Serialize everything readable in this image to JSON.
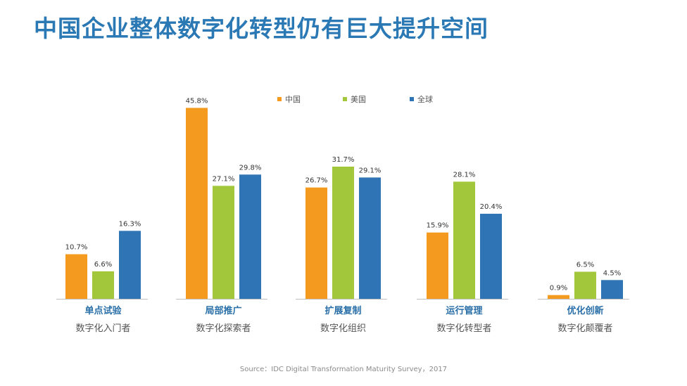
{
  "title": "中国企业整体数字化转型仍有巨大提升空间",
  "source": "Source：IDC Digital Transformation Maturity Survey，2017",
  "chart_data": {
    "type": "bar",
    "categories": [
      "单点试验",
      "局部推广",
      "扩展复制",
      "运行管理",
      "优化创新"
    ],
    "subcategories": [
      "数字化入门者",
      "数字化探索者",
      "数字化组织",
      "数字化转型者",
      "数字化颠覆者"
    ],
    "series": [
      {
        "name": "中国",
        "color": "#f39a1f",
        "values": [
          10.7,
          45.8,
          26.7,
          15.9,
          0.9
        ]
      },
      {
        "name": "美国",
        "color": "#a3c73a",
        "values": [
          6.6,
          27.1,
          31.7,
          28.1,
          6.5
        ]
      },
      {
        "name": "全球",
        "color": "#2f75b5",
        "values": [
          16.3,
          29.8,
          29.1,
          20.4,
          4.5
        ]
      }
    ],
    "value_suffix": "%",
    "ylim": [
      0,
      50
    ],
    "grid": false,
    "legend_position": "top"
  }
}
